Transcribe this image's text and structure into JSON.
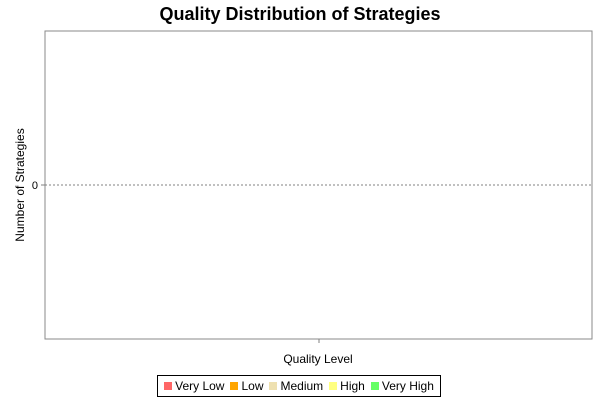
{
  "chart_data": {
    "type": "bar",
    "title": "Quality Distribution of Strategies",
    "xlabel": "Quality Level",
    "ylabel": "Number of Strategies",
    "categories": [],
    "series": [
      {
        "name": "Very Low",
        "color": "#ff6666",
        "values": []
      },
      {
        "name": "Low",
        "color": "#ffa500",
        "values": []
      },
      {
        "name": "Medium",
        "color": "#eee0b0",
        "values": []
      },
      {
        "name": "High",
        "color": "#ffff80",
        "values": []
      },
      {
        "name": "Very High",
        "color": "#66ff66",
        "values": []
      }
    ],
    "yticks": [
      "0"
    ],
    "ylim": [
      -1,
      1
    ],
    "grid": false,
    "zero_line": "dashed",
    "legend_position": "bottom"
  }
}
